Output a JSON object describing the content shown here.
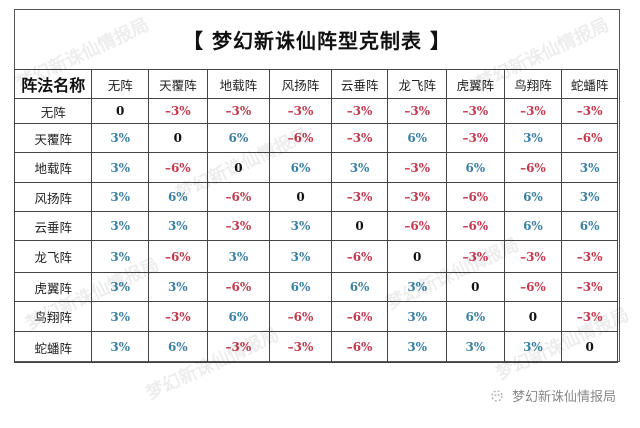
{
  "title": "【 梦幻新诛仙阵型克制表 】",
  "corner_label": "阵法名称",
  "columns": [
    "无阵",
    "天覆阵",
    "地载阵",
    "风扬阵",
    "云垂阵",
    "龙飞阵",
    "虎翼阵",
    "鸟翔阵",
    "蛇蟠阵"
  ],
  "rows": [
    {
      "name": "无阵",
      "values": [
        "0",
        "-3%",
        "-3%",
        "-3%",
        "-3%",
        "-3%",
        "-3%",
        "-3%",
        "-3%"
      ]
    },
    {
      "name": "天覆阵",
      "values": [
        "3%",
        "0",
        "6%",
        "-6%",
        "-3%",
        "6%",
        "-3%",
        "3%",
        "-6%"
      ]
    },
    {
      "name": "地载阵",
      "values": [
        "3%",
        "-6%",
        "0",
        "6%",
        "3%",
        "-3%",
        "6%",
        "-6%",
        "3%"
      ]
    },
    {
      "name": "风扬阵",
      "values": [
        "3%",
        "6%",
        "-6%",
        "0",
        "-3%",
        "-3%",
        "-6%",
        "6%",
        "3%"
      ]
    },
    {
      "name": "云垂阵",
      "values": [
        "3%",
        "3%",
        "-3%",
        "3%",
        "0",
        "-6%",
        "-6%",
        "6%",
        "6%"
      ]
    },
    {
      "name": "龙飞阵",
      "values": [
        "3%",
        "-6%",
        "3%",
        "3%",
        "-6%",
        "0",
        "-3%",
        "-3%",
        "-3%"
      ]
    },
    {
      "name": "虎翼阵",
      "values": [
        "3%",
        "3%",
        "-6%",
        "6%",
        "6%",
        "3%",
        "0",
        "-6%",
        "-3%"
      ]
    },
    {
      "name": "鸟翔阵",
      "values": [
        "3%",
        "-3%",
        "6%",
        "-6%",
        "-6%",
        "3%",
        "6%",
        "0",
        "-3%"
      ]
    },
    {
      "name": "蛇蟠阵",
      "values": [
        "3%",
        "6%",
        "-3%",
        "-3%",
        "-6%",
        "3%",
        "3%",
        "3%",
        "0"
      ]
    }
  ],
  "colors": {
    "positive": "#3b80a3",
    "negative": "#c23a4e",
    "zero": "#111111"
  },
  "watermark": "梦幻新诛仙情报局",
  "footer": {
    "icon": "wechat-official-account-icon",
    "label": "梦幻新诛仙情报局"
  }
}
